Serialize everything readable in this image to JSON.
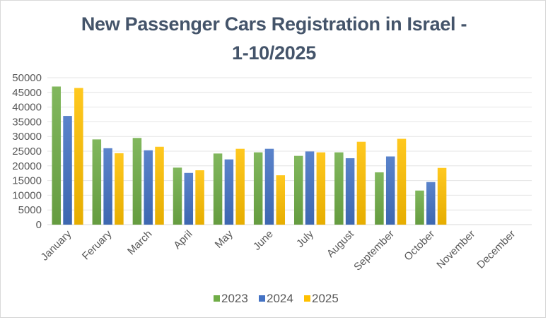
{
  "chart_data": {
    "type": "bar",
    "title_line1": "New Passenger Cars Registration in Israel -",
    "title_line2": "1-10/2025",
    "xlabel": "",
    "ylabel": "",
    "ylim": [
      0,
      50000
    ],
    "yticks": [
      0,
      5000,
      10000,
      15000,
      20000,
      25000,
      30000,
      35000,
      40000,
      45000,
      50000
    ],
    "grid": true,
    "legend_position": "bottom",
    "categories": [
      "January",
      "Feruary",
      "March",
      "April",
      "May",
      "June",
      "July",
      "August",
      "September",
      "October",
      "November",
      "December"
    ],
    "series": [
      {
        "name": "2023",
        "color": "#70ad47",
        "values": [
          47000,
          29000,
          29500,
          19400,
          24200,
          24600,
          23400,
          24600,
          17800,
          11600,
          null,
          null
        ]
      },
      {
        "name": "2024",
        "color": "#4472c4",
        "values": [
          37000,
          26000,
          25300,
          17600,
          22200,
          25800,
          24900,
          22600,
          23200,
          14500,
          null,
          null
        ]
      },
      {
        "name": "2025",
        "color": "#ffc000",
        "values": [
          46500,
          24300,
          26500,
          18500,
          25800,
          16800,
          24600,
          28200,
          29200,
          19300,
          null,
          null
        ]
      }
    ]
  }
}
